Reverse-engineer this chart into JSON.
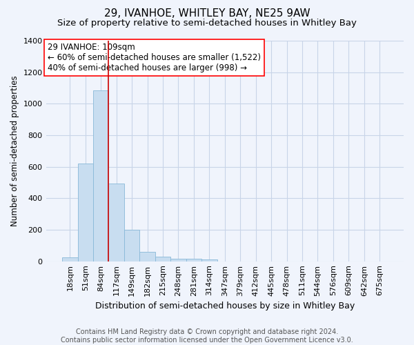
{
  "title": "29, IVANHOE, WHITLEY BAY, NE25 9AW",
  "subtitle": "Size of property relative to semi-detached houses in Whitley Bay",
  "xlabel": "Distribution of semi-detached houses by size in Whitley Bay",
  "ylabel": "Number of semi-detached properties",
  "footer_line1": "Contains HM Land Registry data © Crown copyright and database right 2024.",
  "footer_line2": "Contains public sector information licensed under the Open Government Licence v3.0.",
  "categories": [
    "18sqm",
    "51sqm",
    "84sqm",
    "117sqm",
    "149sqm",
    "182sqm",
    "215sqm",
    "248sqm",
    "281sqm",
    "314sqm",
    "347sqm",
    "379sqm",
    "412sqm",
    "445sqm",
    "478sqm",
    "511sqm",
    "544sqm",
    "576sqm",
    "609sqm",
    "642sqm",
    "675sqm"
  ],
  "values": [
    25,
    620,
    1085,
    495,
    200,
    60,
    30,
    18,
    15,
    12,
    0,
    0,
    0,
    0,
    0,
    0,
    0,
    0,
    0,
    0,
    0
  ],
  "bar_color": "#c8ddf0",
  "bar_edge_color": "#88b8d8",
  "grid_color": "#c8d4e8",
  "background_color": "#f0f4fc",
  "vline_color": "#cc0000",
  "vline_position": 2.5,
  "annotation_line1": "29 IVANHOE: 109sqm",
  "annotation_line2": "← 60% of semi-detached houses are smaller (1,522)",
  "annotation_line3": "40% of semi-detached houses are larger (998) →",
  "ylim": [
    0,
    1400
  ],
  "yticks": [
    0,
    200,
    400,
    600,
    800,
    1000,
    1200,
    1400
  ],
  "title_fontsize": 11,
  "subtitle_fontsize": 9.5,
  "xlabel_fontsize": 9,
  "ylabel_fontsize": 8.5,
  "tick_fontsize": 8,
  "annotation_fontsize": 8.5,
  "footer_fontsize": 7
}
